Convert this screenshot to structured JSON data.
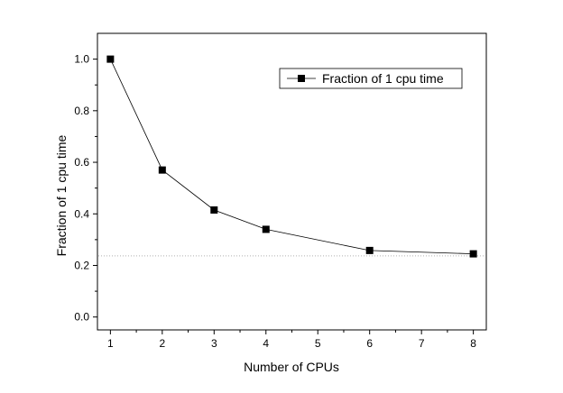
{
  "chart_data": {
    "type": "line",
    "title": "",
    "xlabel": "Number of CPUs",
    "ylabel": "Fraction of 1 cpu time",
    "xlim": [
      0.75,
      8.25
    ],
    "ylim": [
      -0.05,
      1.1
    ],
    "x_ticks": [
      1,
      2,
      3,
      4,
      5,
      6,
      7,
      8
    ],
    "y_ticks": [
      0.0,
      0.2,
      0.4,
      0.6,
      0.8,
      1.0
    ],
    "y_tick_labels": [
      "0.0",
      "0.2",
      "0.4",
      "0.6",
      "0.8",
      "1.0"
    ],
    "grid": false,
    "legend": "top-right",
    "series": [
      {
        "name": "Fraction of 1 cpu time",
        "marker": "square",
        "color": "#000000",
        "x": [
          1,
          2,
          3,
          4,
          6,
          8
        ],
        "y": [
          1.0,
          0.57,
          0.415,
          0.34,
          0.258,
          0.245
        ]
      }
    ],
    "reference_line": {
      "y": 0.237,
      "style": "dotted",
      "color": "#b0b0b0"
    }
  }
}
